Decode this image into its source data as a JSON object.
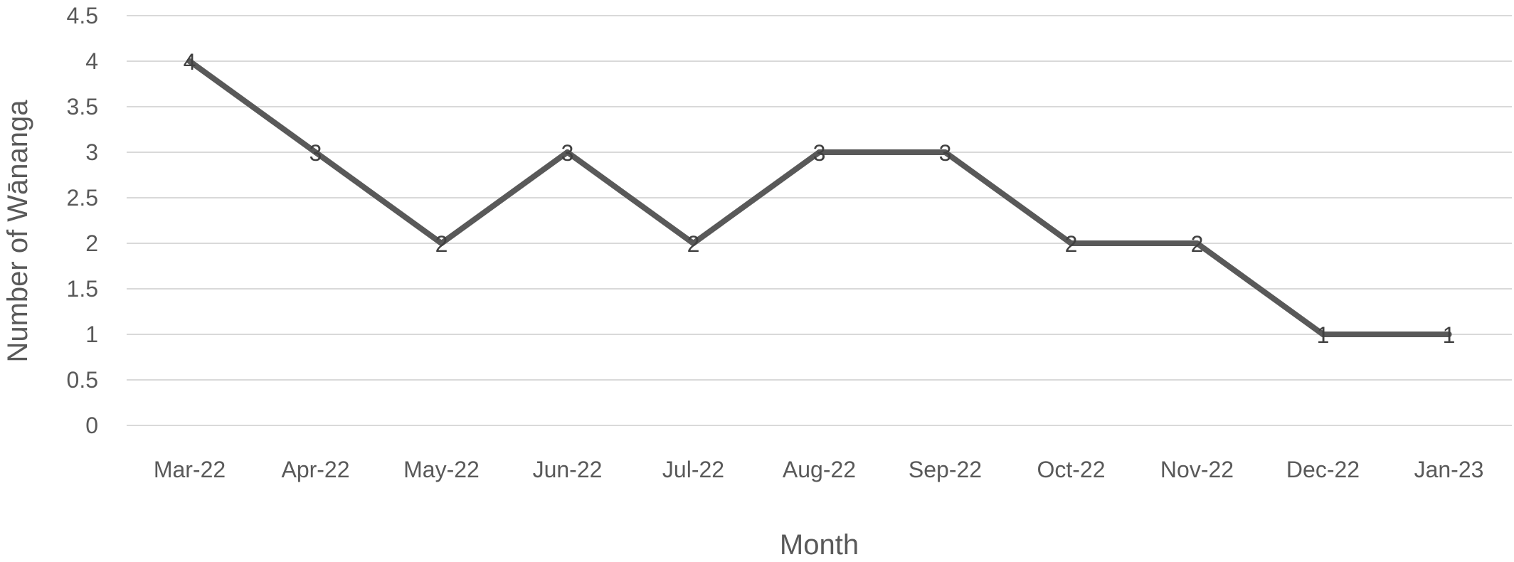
{
  "chart_data": {
    "type": "line",
    "title": "",
    "xlabel": "Month",
    "ylabel": "Number of Wānanga",
    "ylim": [
      0,
      4.5
    ],
    "y_ticks": [
      "0",
      "0.5",
      "1",
      "1.5",
      "2",
      "2.5",
      "3",
      "3.5",
      "4",
      "4.5"
    ],
    "grid": true,
    "legend": "none",
    "categories": [
      "Mar-22",
      "Apr-22",
      "May-22",
      "Jun-22",
      "Jul-22",
      "Aug-22",
      "Sep-22",
      "Oct-22",
      "Nov-22",
      "Dec-22",
      "Jan-23"
    ],
    "series": [
      {
        "values": [
          4,
          3,
          2,
          3,
          2,
          3,
          3,
          2,
          2,
          1,
          1
        ],
        "color": "#595959"
      }
    ],
    "data_labels": [
      "4",
      "3",
      "2",
      "3",
      "2",
      "3",
      "3",
      "2",
      "2",
      "1",
      "1"
    ]
  }
}
